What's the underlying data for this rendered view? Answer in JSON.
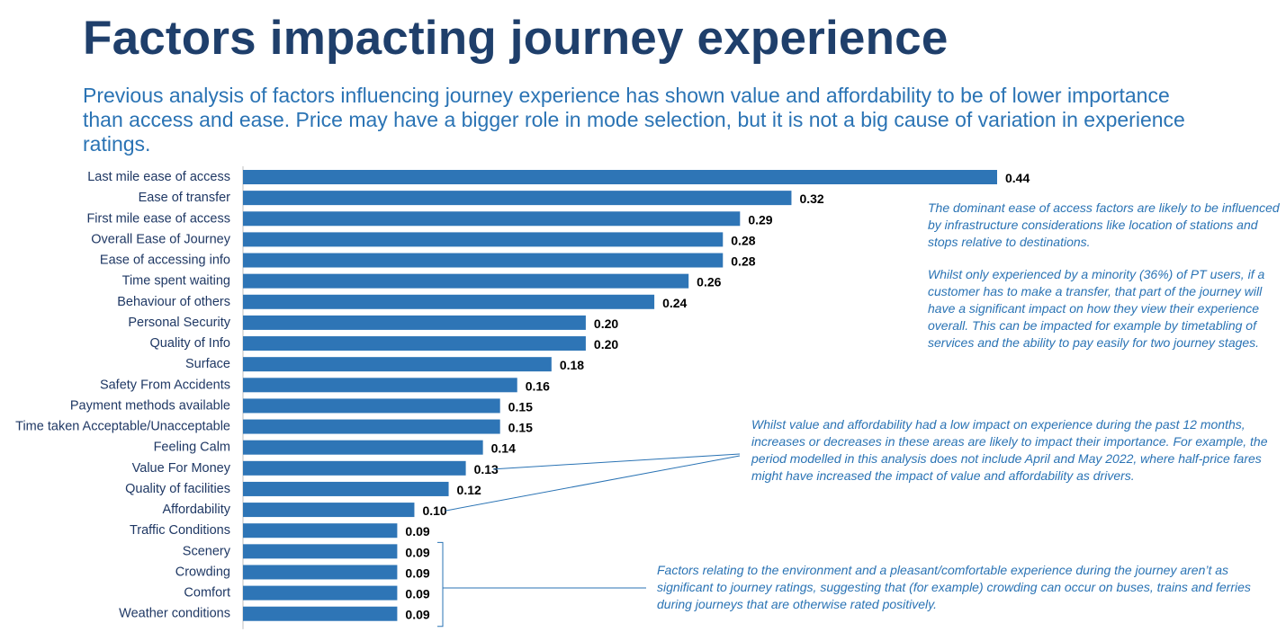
{
  "header": {
    "title": "Factors impacting journey experience",
    "subtitle": "Previous analysis of factors influencing journey experience has shown value and affordability to be of lower importance than access and ease. Price may have a bigger role in mode selection, but it is not a big cause of variation in experience ratings."
  },
  "annotations": {
    "ease_access": "The dominant ease of access factors are likely to be influenced by infrastructure considerations like location of stations and stops relative to destinations.",
    "transfer": "Whilst only experienced by a minority (36%) of PT users, if a customer has to make a transfer, that part of the journey will have a significant impact on how they view their experience overall. This can be impacted for example by timetabling of services and the ability to pay easily for two journey stages.",
    "value": "Whilst value and affordability had a low impact on experience during the past 12 months, increases or decreases in these areas are likely to impact their importance. For example, the period modelled in this analysis does not include April and May 2022, where half-price fares might have increased the impact of value and affordability as drivers.",
    "environment": "Factors relating to the environment and a pleasant/comfortable experience during the journey aren’t as significant to journey ratings, suggesting that (for example) crowding can occur on buses, trains and ferries during journeys that are otherwise rated positively."
  },
  "colors": {
    "bar": "#2e75b6",
    "title": "#1f3f6b",
    "text": "#1f3864",
    "annotation": "#2a73b4"
  },
  "chart_data": {
    "type": "bar",
    "orientation": "horizontal",
    "categories": [
      "Last mile ease of access",
      "Ease of transfer",
      "First mile ease of access",
      "Overall Ease of Journey",
      "Ease of accessing info",
      "Time spent waiting",
      "Behaviour of others",
      "Personal Security",
      "Quality of Info",
      "Surface",
      "Safety From Accidents",
      "Payment methods available",
      "Time taken Acceptable/Unacceptable",
      "Feeling Calm",
      "Value For Money",
      "Quality of facilities",
      "Affordability",
      "Traffic Conditions",
      "Scenery",
      "Crowding",
      "Comfort",
      "Weather conditions"
    ],
    "values": [
      0.44,
      0.32,
      0.29,
      0.28,
      0.28,
      0.26,
      0.24,
      0.2,
      0.2,
      0.18,
      0.16,
      0.15,
      0.15,
      0.14,
      0.13,
      0.12,
      0.1,
      0.09,
      0.09,
      0.09,
      0.09,
      0.09
    ],
    "labels": [
      "0.44",
      "0.32",
      "0.29",
      "0.28",
      "0.28",
      "0.26",
      "0.24",
      "0.20",
      "0.20",
      "0.18",
      "0.16",
      "0.15",
      "0.15",
      "0.14",
      "0.13",
      "0.12",
      "0.10",
      "0.09",
      "0.09",
      "0.09",
      "0.09",
      "0.09"
    ],
    "xlim": [
      0,
      0.44
    ],
    "grid": false,
    "legend": "none"
  }
}
